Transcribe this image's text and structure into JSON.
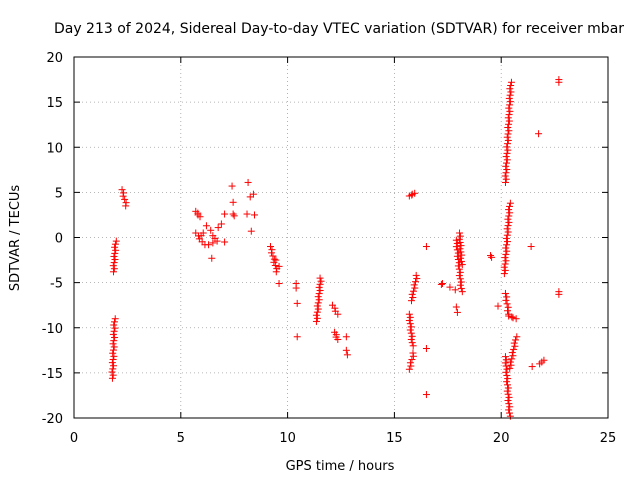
{
  "chart_data": {
    "type": "scatter",
    "title": "Day 213 of 2024, Sidereal Day-to-day VTEC variation (SDTVAR) for receiver mbar",
    "xlabel": "GPS time / hours",
    "ylabel": "SDTVAR / TECUs",
    "xlim": [
      0,
      25
    ],
    "ylim": [
      -20,
      20
    ],
    "xticks": [
      "0",
      "5",
      "10",
      "15",
      "20",
      "25"
    ],
    "yticks": [
      "20",
      "15",
      "10",
      "5",
      "0",
      "-5",
      "-10",
      "-15",
      "-20"
    ],
    "grid": true,
    "marker": "plus",
    "color": "#ff0000",
    "series": [
      {
        "name": "SDTVAR",
        "segments": [
          [
            [
              1.8,
              -15.6
            ],
            [
              1.9,
              -9
            ]
          ],
          [
            [
              1.85,
              -3.8
            ],
            [
              1.95,
              -0.4
            ]
          ],
          [
            [
              2.25,
              5.3
            ],
            [
              2.45,
              3.5
            ]
          ],
          [
            [
              5.7,
              2.9
            ],
            [
              5.9,
              2.3
            ]
          ],
          [
            [
              5.7,
              0.5
            ],
            [
              6.1,
              -0.8
            ]
          ],
          [
            [
              9.2,
              -1
            ],
            [
              9.5,
              -3.8
            ]
          ],
          [
            [
              11.35,
              -9.3
            ],
            [
              11.55,
              -4.5
            ]
          ],
          [
            [
              12.1,
              -7.5
            ],
            [
              12.35,
              -8.5
            ]
          ],
          [
            [
              12.2,
              -10.5
            ],
            [
              12.35,
              -11.3
            ]
          ],
          [
            [
              15.7,
              4.6
            ],
            [
              15.95,
              4.9
            ]
          ],
          [
            [
              15.7,
              -8.5
            ],
            [
              15.85,
              -12
            ]
          ],
          [
            [
              15.7,
              -14.6
            ],
            [
              15.9,
              -12.8
            ]
          ],
          [
            [
              15.8,
              -7
            ],
            [
              16.05,
              -4.2
            ]
          ],
          [
            [
              17.9,
              -0.3
            ],
            [
              18.15,
              -6
            ]
          ],
          [
            [
              18.05,
              0.5
            ],
            [
              18.15,
              -3
            ]
          ],
          [
            [
              20.15,
              -4
            ],
            [
              20.4,
              3.8
            ]
          ],
          [
            [
              20.2,
              6.1
            ],
            [
              20.45,
              17.2
            ]
          ],
          [
            [
              20.2,
              -6.2
            ],
            [
              20.35,
              -8.5
            ]
          ],
          [
            [
              20.35,
              -8.7
            ],
            [
              20.7,
              -9
            ]
          ],
          [
            [
              20.2,
              -13.2
            ],
            [
              20.4,
              -19.8
            ]
          ],
          [
            [
              20.4,
              -14.5
            ],
            [
              20.7,
              -11
            ]
          ]
        ],
        "points": [
          [
            5.95,
            0.2
          ],
          [
            6.05,
            0.5
          ],
          [
            6.2,
            1.3
          ],
          [
            6.4,
            0.8
          ],
          [
            6.5,
            0.2
          ],
          [
            6.6,
            -0.1
          ],
          [
            6.3,
            -0.8
          ],
          [
            6.5,
            -0.6
          ],
          [
            6.7,
            -0.4
          ],
          [
            6.9,
            1.5
          ],
          [
            7.05,
            2.6
          ],
          [
            7.05,
            -0.5
          ],
          [
            6.45,
            -2.3
          ],
          [
            6.75,
            1.1
          ],
          [
            7.4,
            5.7
          ],
          [
            7.45,
            3.9
          ],
          [
            7.45,
            2.6
          ],
          [
            7.5,
            2.4
          ],
          [
            8.15,
            6.1
          ],
          [
            8.25,
            4.5
          ],
          [
            8.4,
            4.8
          ],
          [
            8.45,
            2.5
          ],
          [
            8.1,
            2.6
          ],
          [
            8.3,
            0.7
          ],
          [
            9.45,
            -2.5
          ],
          [
            9.6,
            -3.2
          ],
          [
            9.6,
            -5.1
          ],
          [
            10.4,
            -5.1
          ],
          [
            10.4,
            -5.6
          ],
          [
            10.45,
            -7.3
          ],
          [
            10.45,
            -11
          ],
          [
            12.75,
            -11
          ],
          [
            12.75,
            -12.5
          ],
          [
            12.8,
            -13
          ],
          [
            16.5,
            -1
          ],
          [
            16.5,
            -12.3
          ],
          [
            16.5,
            -17.4
          ],
          [
            17.2,
            -5.2
          ],
          [
            17.25,
            -5.1
          ],
          [
            17.6,
            -5.5
          ],
          [
            17.85,
            -5.8
          ],
          [
            17.9,
            -7.7
          ],
          [
            17.95,
            -8.3
          ],
          [
            19.5,
            -2
          ],
          [
            19.55,
            -2.2
          ],
          [
            19.85,
            -7.6
          ],
          [
            21.4,
            -1
          ],
          [
            21.45,
            -14.3
          ],
          [
            21.75,
            11.5
          ],
          [
            21.8,
            -14
          ],
          [
            21.9,
            -13.8
          ],
          [
            22.0,
            -13.6
          ],
          [
            22.7,
            17.5
          ],
          [
            22.7,
            17.2
          ],
          [
            22.7,
            -6
          ],
          [
            22.7,
            -6.3
          ]
        ]
      }
    ]
  }
}
